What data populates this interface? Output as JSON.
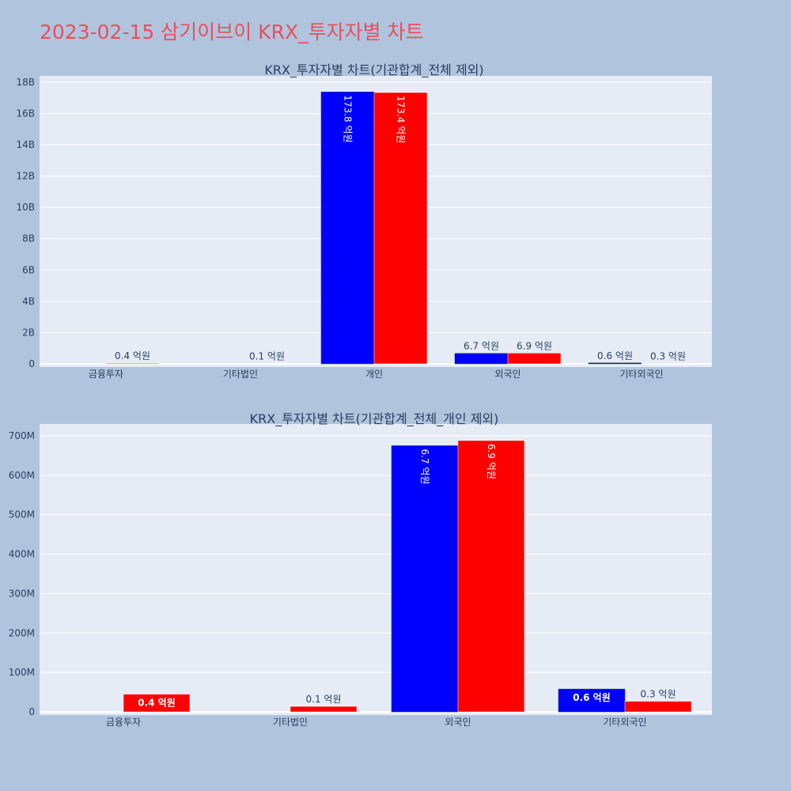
{
  "page_title": "2023-02-15 삼기이브이 KRX_투자자별 차트",
  "colors": {
    "background": "#b0c4de",
    "plot_bg": "#e5ecf6",
    "title": "#e8505b",
    "text": "#2a3f5f",
    "grid": "#ffffff",
    "buy": "#0000ff",
    "sell": "#ff0000"
  },
  "chart_data": [
    {
      "type": "bar",
      "title": "KRX_투자자별 차트(기관합계_전체 제외)",
      "categories": [
        "금융투자",
        "기타법인",
        "개인",
        "외국인",
        "기타외국인"
      ],
      "ylim": [
        0,
        18400000000
      ],
      "yticks": [
        0,
        2000000000,
        4000000000,
        6000000000,
        8000000000,
        10000000000,
        12000000000,
        14000000000,
        16000000000,
        18000000000
      ],
      "ytick_labels": [
        "0",
        "2B",
        "4B",
        "6B",
        "8B",
        "10B",
        "12B",
        "14B",
        "16B",
        "18B"
      ],
      "grid": true,
      "series": [
        {
          "color": "#0000ff",
          "values": [
            0,
            0,
            17380000000,
            670000000,
            60000000
          ],
          "labels": [
            "",
            "",
            "173.8 억원",
            "6.7 억원",
            "0.6 억원"
          ]
        },
        {
          "color": "#ff0000",
          "values": [
            45000000,
            14000000,
            17340000000,
            690000000,
            27000000
          ],
          "labels": [
            "0.4 억원",
            "0.1 억원",
            "173.4 억원",
            "6.9 억원",
            "0.3 억원"
          ]
        }
      ]
    },
    {
      "type": "bar",
      "title": "KRX_투자자별 차트(기관합계_전체_개인 제외)",
      "categories": [
        "금융투자",
        "기타법인",
        "외국인",
        "기타외국인"
      ],
      "ylim": [
        0,
        730000000
      ],
      "yticks": [
        0,
        100000000,
        200000000,
        300000000,
        400000000,
        500000000,
        600000000,
        700000000
      ],
      "ytick_labels": [
        "0",
        "100M",
        "200M",
        "300M",
        "400M",
        "500M",
        "600M",
        "700M"
      ],
      "grid": true,
      "series": [
        {
          "color": "#0000ff",
          "values": [
            0,
            0,
            675000000,
            58000000
          ],
          "labels": [
            "",
            "",
            "6.7 억원",
            "0.6 억원"
          ]
        },
        {
          "color": "#ff0000",
          "values": [
            45000000,
            14000000,
            688000000,
            27000000
          ],
          "labels": [
            "0.4 억원",
            "0.1 억원",
            "6.9 억원",
            "0.3 억원"
          ]
        }
      ]
    }
  ]
}
